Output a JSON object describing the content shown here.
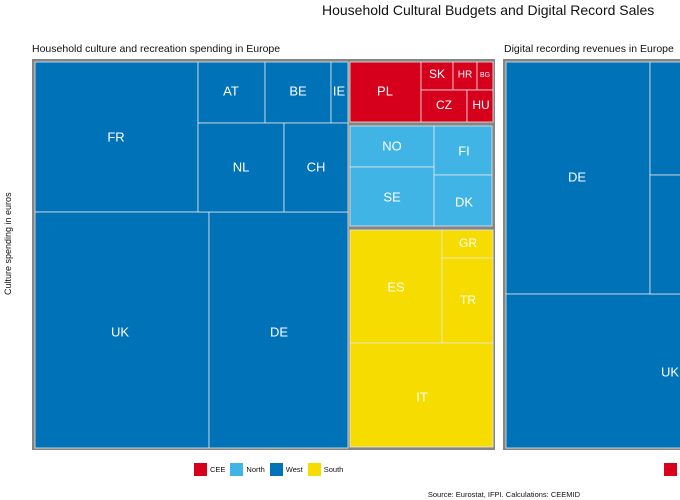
{
  "title": "Household Cultural Budgets and Digital Record Sales",
  "source": "Source: Eurostat, IFPI. Calculations: CEEMID",
  "chart_data": [
    {
      "type": "treemap",
      "title": "Household culture and recreation spending in Europe",
      "ylabel": "Culture spending in euros",
      "legend": [
        "CEE",
        "North",
        "West",
        "South"
      ],
      "colors": {
        "CEE": "#d6001c",
        "North": "#40b4e5",
        "West": "#0072b8",
        "South": "#f7dc00"
      },
      "tiles": [
        {
          "label": "FR",
          "group": "West"
        },
        {
          "label": "UK",
          "group": "West"
        },
        {
          "label": "DE",
          "group": "West"
        },
        {
          "label": "AT",
          "group": "West"
        },
        {
          "label": "BE",
          "group": "West"
        },
        {
          "label": "IE",
          "group": "West"
        },
        {
          "label": "NL",
          "group": "West"
        },
        {
          "label": "CH",
          "group": "West"
        },
        {
          "label": "PL",
          "group": "CEE"
        },
        {
          "label": "SK",
          "group": "CEE"
        },
        {
          "label": "HR",
          "group": "CEE"
        },
        {
          "label": "BG",
          "group": "CEE"
        },
        {
          "label": "CZ",
          "group": "CEE"
        },
        {
          "label": "HU",
          "group": "CEE"
        },
        {
          "label": "NO",
          "group": "North"
        },
        {
          "label": "FI",
          "group": "North"
        },
        {
          "label": "SE",
          "group": "North"
        },
        {
          "label": "DK",
          "group": "North"
        },
        {
          "label": "ES",
          "group": "South"
        },
        {
          "label": "GR",
          "group": "South"
        },
        {
          "label": "TR",
          "group": "South"
        },
        {
          "label": "IT",
          "group": "South"
        }
      ]
    },
    {
      "type": "treemap",
      "title": "Digital recording revenues in Europe",
      "tiles": [
        {
          "label": "DE",
          "group": "West"
        },
        {
          "label": "UK",
          "group": "West"
        }
      ]
    }
  ]
}
